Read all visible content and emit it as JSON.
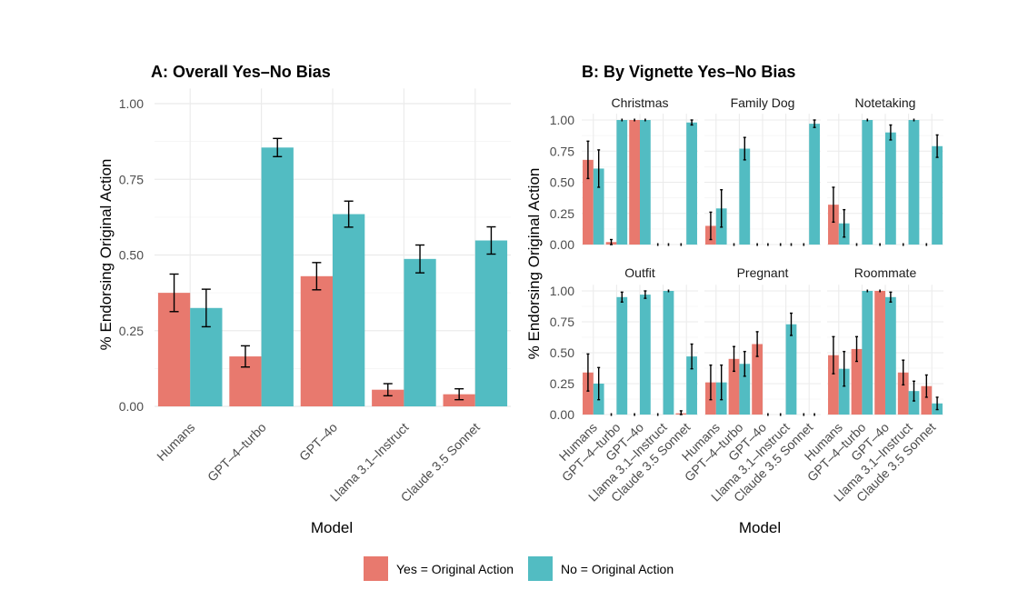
{
  "colors": {
    "yes": "#E8796E",
    "no": "#52BCC2",
    "grid": "#EBEBEB",
    "text": "#4D4D4D",
    "title": "#000000"
  },
  "legend": {
    "yes_label": "Yes = Original Action",
    "no_label": "No = Original Action"
  },
  "chart_data": [
    {
      "type": "bar",
      "title": "A: Overall Yes–No Bias",
      "xlabel": "Model",
      "ylabel": "% Endorsing Original Action",
      "ylim": [
        0,
        1.05
      ],
      "yticks": [
        "0.00",
        "0.25",
        "0.50",
        "0.75",
        "1.00"
      ],
      "categories": [
        "Humans",
        "GPT–4–turbo",
        "GPT–4o",
        "Llama 3.1–Instruct",
        "Claude 3.5 Sonnet"
      ],
      "series": [
        {
          "name": "Yes = Original Action",
          "values": [
            0.375,
            0.165,
            0.43,
            0.055,
            0.04
          ],
          "err": [
            0.062,
            0.035,
            0.045,
            0.02,
            0.018
          ]
        },
        {
          "name": "No = Original Action",
          "values": [
            0.325,
            0.855,
            0.635,
            0.487,
            0.548
          ],
          "err": [
            0.062,
            0.03,
            0.043,
            0.046,
            0.045
          ]
        }
      ]
    },
    {
      "type": "bar",
      "title": "B: By Vignette Yes–No Bias",
      "xlabel": "Model",
      "ylabel": "% Endorsing Original Action",
      "ylim": [
        0,
        1.05
      ],
      "yticks": [
        "0.00",
        "0.25",
        "0.50",
        "0.75",
        "1.00"
      ],
      "categories": [
        "Humans",
        "GPT–4–turbo",
        "GPT–4o",
        "Llama 3.1–Instruct",
        "Claude 3.5 Sonnet"
      ],
      "panels": [
        {
          "name": "Christmas",
          "yes": [
            0.68,
            0.02,
            1.0,
            0.0,
            0.0
          ],
          "yes_err": [
            0.15,
            0.02,
            0.0,
            0.0,
            0.0
          ],
          "no": [
            0.61,
            1.0,
            1.0,
            0.0,
            0.98
          ],
          "no_err": [
            0.15,
            0.0,
            0.0,
            0.0,
            0.02
          ]
        },
        {
          "name": "Family Dog",
          "yes": [
            0.15,
            0.0,
            0.0,
            0.0,
            0.0
          ],
          "yes_err": [
            0.11,
            0.0,
            0.0,
            0.0,
            0.0
          ],
          "no": [
            0.29,
            0.77,
            0.0,
            0.0,
            0.97
          ],
          "no_err": [
            0.15,
            0.09,
            0.0,
            0.0,
            0.03
          ]
        },
        {
          "name": "Notetaking",
          "yes": [
            0.32,
            0.0,
            0.0,
            0.0,
            0.0
          ],
          "yes_err": [
            0.14,
            0.0,
            0.0,
            0.0,
            0.0
          ],
          "no": [
            0.17,
            1.0,
            0.9,
            1.0,
            0.79
          ],
          "no_err": [
            0.11,
            0.0,
            0.06,
            0.0,
            0.09
          ]
        },
        {
          "name": "Outfit",
          "yes": [
            0.34,
            0.0,
            0.0,
            0.0,
            0.01
          ],
          "yes_err": [
            0.15,
            0.0,
            0.0,
            0.0,
            0.02
          ],
          "no": [
            0.25,
            0.95,
            0.97,
            1.0,
            0.47
          ],
          "no_err": [
            0.13,
            0.04,
            0.03,
            0.0,
            0.1
          ]
        },
        {
          "name": "Pregnant",
          "yes": [
            0.26,
            0.45,
            0.57,
            0.0,
            0.0
          ],
          "yes_err": [
            0.14,
            0.1,
            0.1,
            0.0,
            0.0
          ],
          "no": [
            0.26,
            0.41,
            0.0,
            0.73,
            0.0
          ],
          "no_err": [
            0.14,
            0.1,
            0.0,
            0.09,
            0.0
          ]
        },
        {
          "name": "Roommate",
          "yes": [
            0.48,
            0.53,
            1.0,
            0.34,
            0.23
          ],
          "yes_err": [
            0.15,
            0.1,
            0.0,
            0.1,
            0.09
          ],
          "no": [
            0.37,
            1.0,
            0.95,
            0.19,
            0.09
          ],
          "no_err": [
            0.14,
            0.0,
            0.04,
            0.08,
            0.05
          ]
        }
      ]
    }
  ]
}
